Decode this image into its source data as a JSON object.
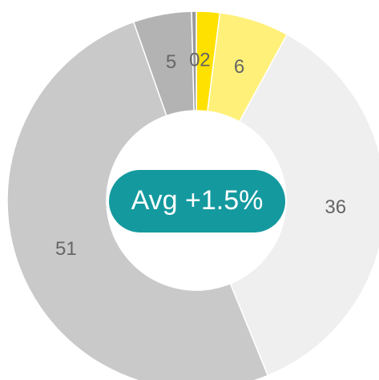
{
  "chart_data": {
    "type": "donut",
    "categories": [
      null,
      null,
      null,
      null,
      null,
      null
    ],
    "values": [
      2,
      6,
      36,
      51,
      5,
      0.4
    ],
    "value_labels": [
      "2",
      "6",
      "36",
      "51",
      "5",
      "0"
    ],
    "colors": [
      "#ffe100",
      "#fff07a",
      "#efefef",
      "#c9c9c9",
      "#b3b3b3",
      "#999999"
    ],
    "center_label": "Avg +1.5%",
    "center_color": "#14999f"
  }
}
